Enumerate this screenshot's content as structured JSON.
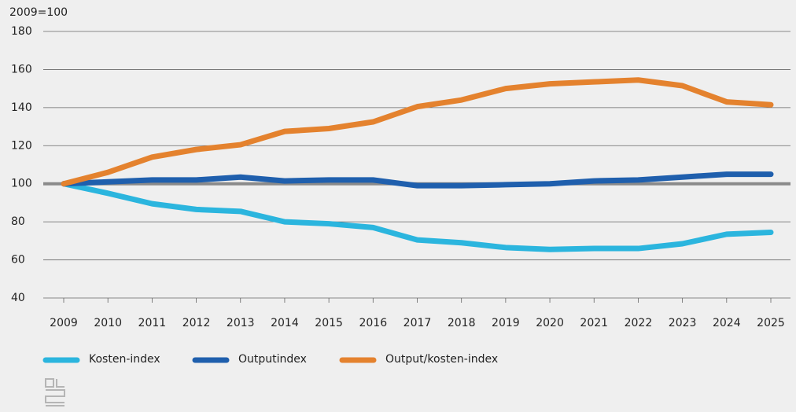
{
  "chart_data": {
    "type": "line",
    "y_label": "2009=100",
    "x": [
      "2009",
      "2010",
      "2011",
      "2012",
      "2013",
      "2014",
      "2015",
      "2016",
      "2017",
      "2018",
      "2019",
      "2020",
      "2021",
      "2022",
      "2023",
      "2024",
      "2025"
    ],
    "series": [
      {
        "name": "Kosten-index",
        "color": "#2bb5de",
        "values": [
          100,
          95,
          89.5,
          86.5,
          85.5,
          80,
          79,
          77,
          70.5,
          69,
          66.5,
          65.5,
          66,
          66,
          68.5,
          73.5,
          74.5
        ]
      },
      {
        "name": "Outputindex",
        "color": "#1f5fad",
        "values": [
          100,
          101,
          102,
          102,
          103.5,
          101.5,
          102,
          102,
          99,
          99,
          99.5,
          100,
          101.5,
          102,
          103.5,
          105,
          105
        ]
      },
      {
        "name": "Output/kosten-index",
        "color": "#e4822e",
        "values": [
          100,
          106,
          114,
          118,
          120.5,
          127.5,
          129,
          132.5,
          140.5,
          144,
          150,
          152.5,
          153.5,
          154.5,
          151.5,
          143,
          141.5
        ]
      }
    ],
    "reference_line": 100,
    "reference_color": "#8a8a8a",
    "ylim": [
      40,
      180
    ],
    "yticks": [
      40,
      60,
      80,
      100,
      120,
      140,
      160,
      180
    ],
    "grid": true
  }
}
